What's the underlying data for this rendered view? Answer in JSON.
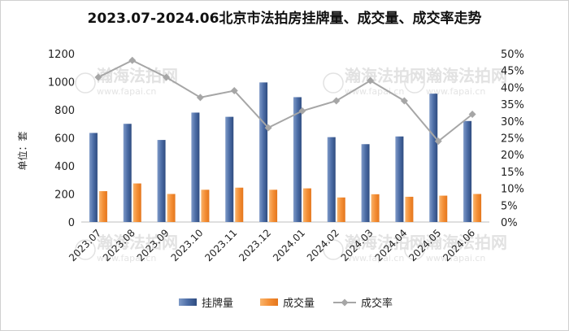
{
  "chart_data": {
    "type": "bar",
    "title": "2023.07-2024.06北京市法拍房挂牌量、成交量、成交率走势",
    "ylabel": "单位：套",
    "ylim": [
      0,
      1200
    ],
    "y2lim": [
      0,
      0.5
    ],
    "yticks": [
      "0",
      "200",
      "400",
      "600",
      "800",
      "1000",
      "1200"
    ],
    "y2ticks": [
      "0%",
      "5%",
      "10%",
      "15%",
      "20%",
      "25%",
      "30%",
      "35%",
      "40%",
      "45%",
      "50%"
    ],
    "categories": [
      "2023.07",
      "2023.08",
      "2023.09",
      "2023.10",
      "2023.11",
      "2023.12",
      "2024.01",
      "2024.02",
      "2024.03",
      "2024.04",
      "2024.05",
      "2024.06"
    ],
    "series": [
      {
        "name": "挂牌量",
        "type": "bar",
        "color": "#3f5e94",
        "values": [
          635,
          700,
          585,
          780,
          750,
          995,
          890,
          605,
          555,
          610,
          915,
          720
        ]
      },
      {
        "name": "成交量",
        "type": "bar",
        "color": "#f28a2c",
        "values": [
          220,
          275,
          200,
          230,
          245,
          230,
          240,
          175,
          198,
          180,
          188,
          200
        ]
      },
      {
        "name": "成交率",
        "type": "line",
        "axis": "right",
        "color": "#a6a6a6",
        "values": [
          0.43,
          0.48,
          0.43,
          0.37,
          0.39,
          0.28,
          0.33,
          0.36,
          0.42,
          0.36,
          0.24,
          0.32
        ]
      }
    ],
    "grid": false,
    "legend": "bottom",
    "watermark": {
      "text": "瀚海法拍网",
      "url": "www.fapai.cn"
    }
  }
}
